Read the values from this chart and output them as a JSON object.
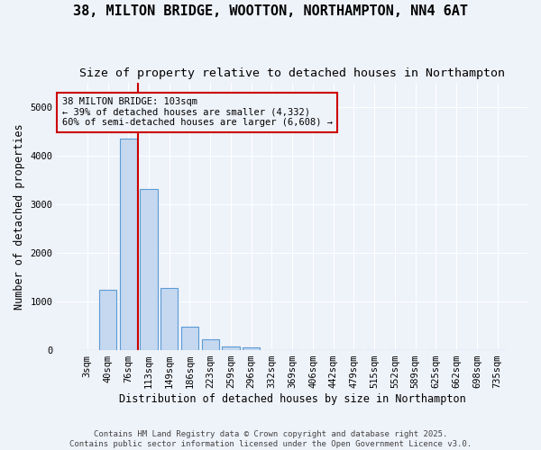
{
  "title1": "38, MILTON BRIDGE, WOOTTON, NORTHAMPTON, NN4 6AT",
  "title2": "Size of property relative to detached houses in Northampton",
  "xlabel": "Distribution of detached houses by size in Northampton",
  "ylabel": "Number of detached properties",
  "footer1": "Contains HM Land Registry data © Crown copyright and database right 2025.",
  "footer2": "Contains public sector information licensed under the Open Government Licence v3.0.",
  "bins": [
    "3sqm",
    "40sqm",
    "76sqm",
    "113sqm",
    "149sqm",
    "186sqm",
    "223sqm",
    "259sqm",
    "296sqm",
    "332sqm",
    "369sqm",
    "406sqm",
    "442sqm",
    "479sqm",
    "515sqm",
    "552sqm",
    "589sqm",
    "625sqm",
    "662sqm",
    "698sqm",
    "735sqm"
  ],
  "values": [
    0,
    1250,
    4350,
    3320,
    1280,
    490,
    220,
    80,
    55,
    0,
    0,
    0,
    0,
    0,
    0,
    0,
    0,
    0,
    0,
    0,
    0
  ],
  "bar_color": "#c5d8f0",
  "bar_edge_color": "#5b9bd5",
  "vline_x": 2.45,
  "vline_color": "#cc0000",
  "annotation_text": "38 MILTON BRIDGE: 103sqm\n← 39% of detached houses are smaller (4,332)\n60% of semi-detached houses are larger (6,608) →",
  "annotation_box_edgecolor": "#cc0000",
  "ylim": [
    0,
    5500
  ],
  "background_color": "#eef2f9",
  "grid_color": "#ffffff",
  "title_fontsize": 11,
  "subtitle_fontsize": 9.5,
  "axis_label_fontsize": 8.5,
  "tick_fontsize": 7.5,
  "annotation_fontsize": 7.5,
  "footer_fontsize": 6.5
}
